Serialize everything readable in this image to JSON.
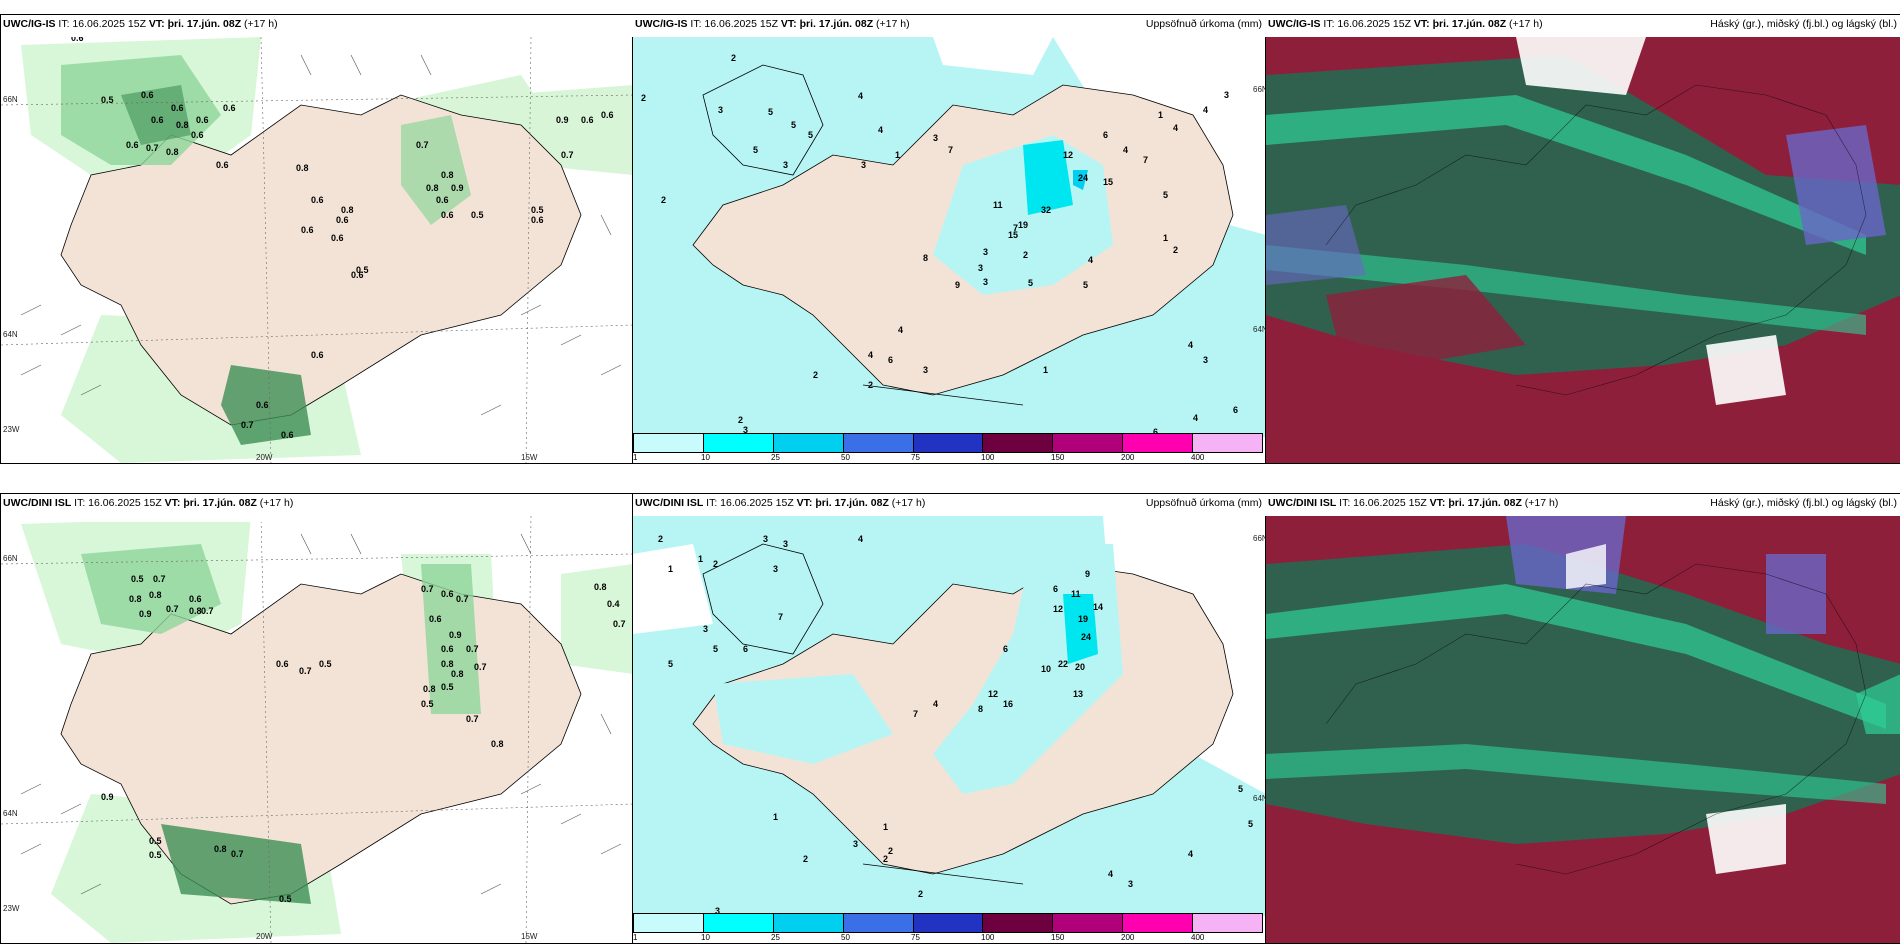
{
  "colors": {
    "land": "#f3e3d6",
    "sea_rain": "#b7f5f5",
    "precip_light": "#d4f5d4",
    "precip_mid": "#8fd69b",
    "precip_dark": "#3f8f55",
    "cloud_dark": "#30614f",
    "cloud_green": "#2fcf97",
    "cloud_red": "#8e1f3b",
    "cloud_blue": "#6a66c8",
    "cloud_white": "#ffffff"
  },
  "scale_colors": [
    "#c8fbfb",
    "#00ffff",
    "#00cfef",
    "#3b6fe8",
    "#2233c4",
    "#6e0040",
    "#b0007a",
    "#ff00b0",
    "#f5b2f5"
  ],
  "scale_labels": [
    "1",
    "10",
    "25",
    "50",
    "75",
    "100",
    "150",
    "200",
    "400"
  ],
  "panels": [
    {
      "id": "ig-wind",
      "model": "UWC/IG-IS",
      "it": "IT: 16.06.2025 15Z",
      "vt": "VT: þri. 17.jún. 08Z",
      "lead": "(+17 h)",
      "values": [
        "0.6",
        "0.5",
        "0.6",
        "0.6",
        "0.6",
        "0.8",
        "0.6",
        "0.6",
        "0.7",
        "0.8",
        "0.6",
        "0.6",
        "0.8",
        "0.6",
        "0.6",
        "0.6",
        "0.6",
        "0.8",
        "0.6",
        "0.8",
        "0.7",
        "0.8",
        "0.9",
        "0.6",
        "0.5",
        "0.6",
        "0.6",
        "0.6",
        "0.6",
        "0.5",
        "0.6",
        "0.5",
        "0.7",
        "0.7",
        "0.9",
        "0.6",
        "0.6",
        "0.6"
      ],
      "axis": {
        "lat1": "66N",
        "lat2": "64N",
        "lat3": "23W",
        "lon1": "20W",
        "lon2": "15W"
      }
    },
    {
      "id": "ig-precip",
      "model": "UWC/IG-IS",
      "it": "IT: 16.06.2025 15Z",
      "vt": "VT: þri. 17.jún. 08Z",
      "lead": "(+17 h)",
      "title": "Uppsöfnuð úrkoma (mm)",
      "values": [
        "2",
        "2",
        "3",
        "5",
        "5",
        "5",
        "3",
        "4",
        "4",
        "3",
        "5",
        "2",
        "1",
        "12",
        "24",
        "15",
        "32",
        "19",
        "15",
        "11",
        "7",
        "6",
        "4",
        "7",
        "5",
        "4",
        "3",
        "4",
        "1",
        "2",
        "1",
        "5",
        "3",
        "9",
        "8",
        "3",
        "5",
        "6",
        "4",
        "2",
        "3",
        "4",
        "2",
        "2",
        "4",
        "3",
        "1",
        "2",
        "3",
        "4",
        "4",
        "6",
        "6",
        "7",
        "3",
        "3"
      ],
      "axis": {
        "lat1": "66N",
        "lat2": "64N"
      }
    },
    {
      "id": "ig-cloud",
      "model": "UWC/IG-IS",
      "it": "IT: 16.06.2025 15Z",
      "vt": "VT: þri. 17.jún. 08Z",
      "lead": "(+17 h)",
      "title": "Háský (gr.), miðský (fj.bl.) og lágský (bl.)"
    },
    {
      "id": "dini-wind",
      "model": "UWC/DINI ISL",
      "it": "IT: 16.06.2025 15Z",
      "vt": "VT: þri. 17.jún. 08Z",
      "lead": "(+17 h)",
      "values": [
        "0.5",
        "0.7",
        "0.8",
        "0.8",
        "0.9",
        "0.7",
        "0.6",
        "0.8",
        "0.7",
        "0.7",
        "0.6",
        "0.7",
        "0.6",
        "0.9",
        "0.6",
        "0.7",
        "0.8",
        "0.8",
        "0.7",
        "0.5",
        "0.5",
        "0.8",
        "0.7",
        "0.6",
        "0.7",
        "0.5",
        "0.8",
        "0.9",
        "0.5",
        "0.5",
        "0.8",
        "0.7",
        "0.5",
        "0.8",
        "0.4",
        "0.7"
      ],
      "axis": {
        "lat1": "66N",
        "lat2": "64N",
        "lat3": "23W",
        "lon1": "20W",
        "lon2": "15W"
      }
    },
    {
      "id": "dini-precip",
      "model": "UWC/DINI ISL",
      "it": "IT: 16.06.2025 15Z",
      "vt": "VT: þri. 17.jún. 08Z",
      "lead": "(+17 h)",
      "title": "Uppsöfnuð úrkoma (mm)",
      "values": [
        "2",
        "1",
        "3",
        "3",
        "3",
        "2",
        "1",
        "7",
        "5",
        "5",
        "6",
        "3",
        "4",
        "19",
        "14",
        "24",
        "12",
        "11",
        "9",
        "6",
        "22",
        "20",
        "10",
        "13",
        "16",
        "12",
        "8",
        "6",
        "4",
        "7",
        "2",
        "3",
        "1",
        "2",
        "2",
        "1",
        "2",
        "3",
        "4",
        "3",
        "4",
        "5",
        "5"
      ],
      "axis": {
        "lat1": "66N",
        "lat2": "64N"
      }
    },
    {
      "id": "dini-cloud",
      "model": "UWC/DINI ISL",
      "it": "IT: 16.06.2025 15Z",
      "vt": "VT: þri. 17.jún. 08Z",
      "lead": "(+17 h)",
      "title": "Háský (gr.), miðský (fj.bl.) og lágský (bl.)"
    }
  ]
}
